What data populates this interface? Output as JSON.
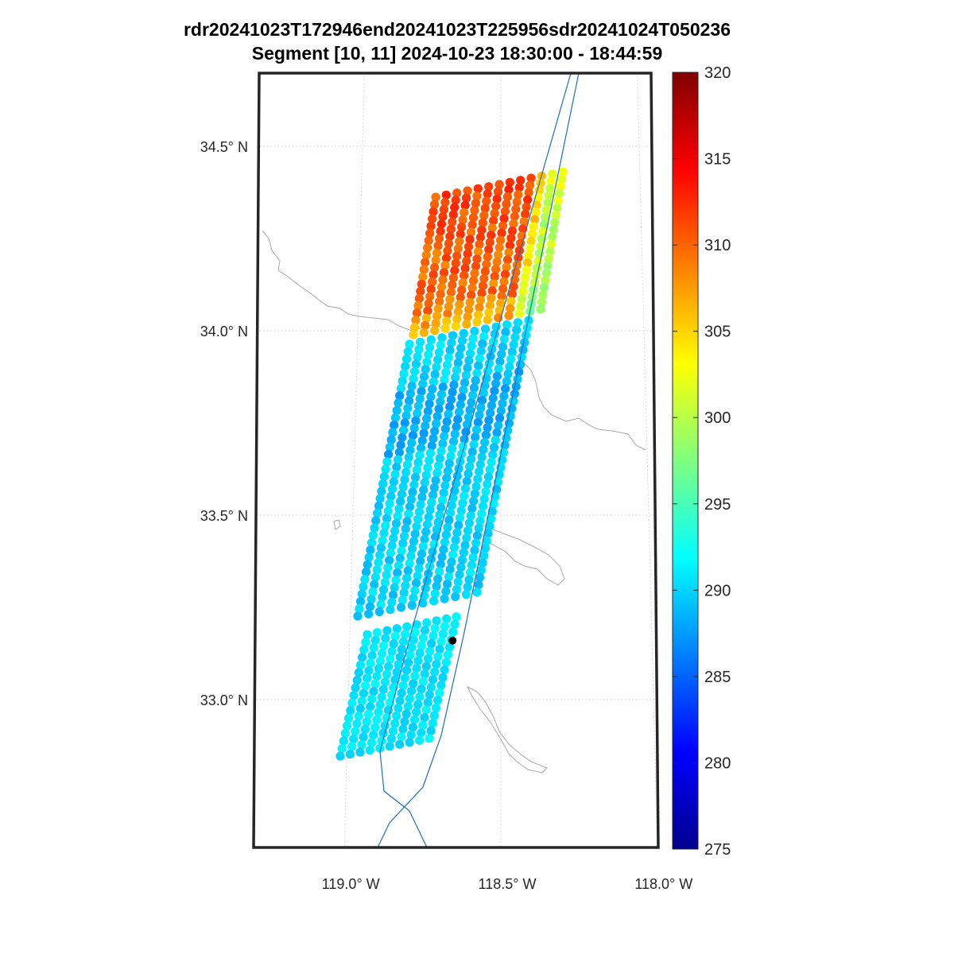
{
  "title": {
    "line1": "rdr20241023T172946end20241023T225956sdr20241024T050236",
    "line2": "Segment [10, 11] 2024-10-23 18:30:00 - 18:44:59"
  },
  "chart_data": {
    "type": "swath_map",
    "projection": "conic",
    "lat_range": [
      32.6,
      34.7
    ],
    "lon_range": [
      -119.3,
      -118.0
    ],
    "lat_ticks": [
      {
        "value": 34.5,
        "label": "34.5° N"
      },
      {
        "value": 34.0,
        "label": "34.0° N"
      },
      {
        "value": 33.5,
        "label": "33.5° N"
      },
      {
        "value": 33.0,
        "label": "33.0° N"
      }
    ],
    "lon_ticks": [
      {
        "value": -119.0,
        "label": "119.0° W"
      },
      {
        "value": -118.5,
        "label": "118.5° W"
      },
      {
        "value": -118.0,
        "label": "118.0° W"
      }
    ],
    "grid": true,
    "colorbar": {
      "min": 275,
      "max": 320,
      "colormap": "jet",
      "ticks": [
        "275",
        "280",
        "285",
        "290",
        "295",
        "300",
        "305",
        "310",
        "315",
        "320"
      ]
    },
    "swath": {
      "marker": "filled circle",
      "value_summary": [
        {
          "region": "north segment, lat 34.05–34.45",
          "value": 309
        },
        {
          "region": "south segment, lat 32.8–34.05",
          "value": 290
        }
      ]
    },
    "marker_point": {
      "lon": -118.66,
      "lat": 33.16,
      "color": "#000000"
    }
  }
}
